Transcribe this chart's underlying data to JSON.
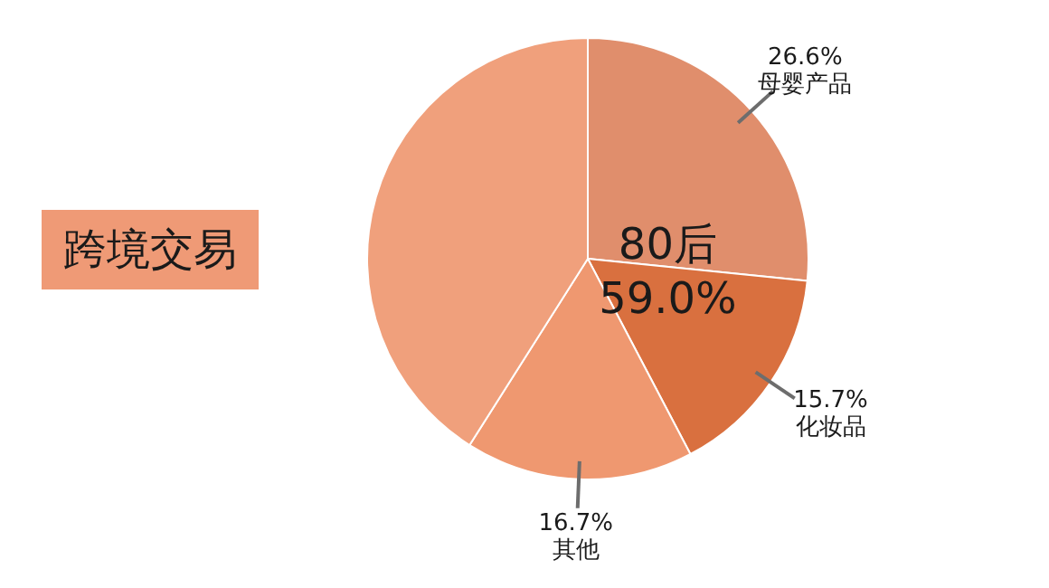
{
  "chart_data": {
    "type": "pie",
    "title": "跨境交易",
    "legend": false,
    "categories": [
      "母婴产品",
      "化妆品",
      "其他",
      null
    ],
    "values": [
      26.6,
      15.7,
      16.7,
      41.0
    ],
    "colors": [
      "#e08e6c",
      "#d9703f",
      "#ef9870",
      "#f0a07c"
    ],
    "value_labels": [
      "26.6%",
      "15.7%",
      "16.7%",
      null
    ],
    "annotations": [
      "80后",
      "59.0%"
    ]
  }
}
